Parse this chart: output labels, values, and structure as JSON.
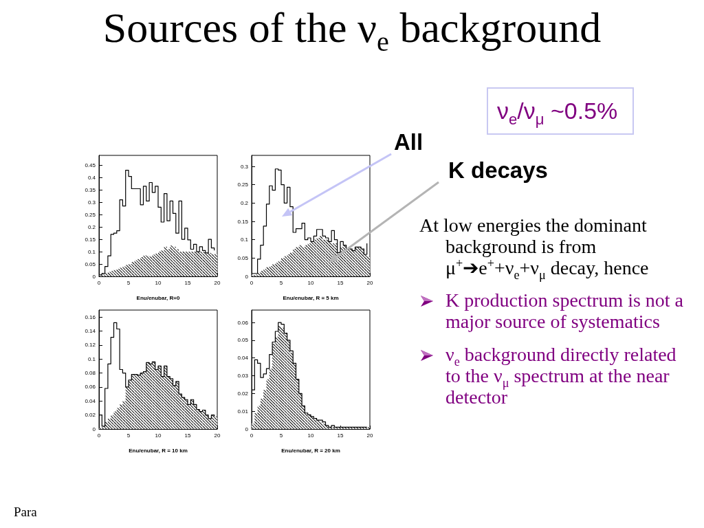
{
  "chart_data": [
    {
      "type": "histogram",
      "title": "Sources of the ν$_{e}$ background",
      "xlabel": "Enu/enubar, R=0",
      "annotations": [
        "ν$_{e}$/ν$_{μ}$ ~0.5%",
        "At low energies the dominant background is from μ$^{+}$➔e$^{+}$+ν$_{e}$+ν$_{μ}$ decay, hence",
        "K production spectrum is not a major source of systematics",
        "ν$_{e}$ background directly related to the ν$_{μ}$ spectrum at the near detector",
        "Para"
      ],
      "bins": [
        0,
        0.5,
        1,
        1.5,
        2,
        2.5,
        3,
        3.5,
        4,
        4.5,
        5,
        5.5,
        6,
        6.5,
        7,
        7.5,
        8,
        8.5,
        9,
        9.5,
        10,
        10.5,
        11,
        11.5,
        12,
        12.5,
        13,
        13.5,
        14,
        14.5,
        15,
        15.5,
        16,
        16.5,
        17,
        17.5,
        18,
        18.5,
        19,
        19.5,
        20
      ],
      "series": [
        {
          "type": "step",
          "color": "#000000",
          "x": [
            0,
            0.5,
            1,
            1.5,
            2,
            2.5,
            3,
            3.5,
            4,
            4.5,
            5,
            5.5,
            6,
            6.5,
            7,
            7.5,
            8,
            8.5,
            9,
            9.5,
            10,
            10.5,
            11,
            11.5,
            12,
            12.5,
            13,
            13.5,
            14,
            14.5,
            15,
            15.5,
            16,
            16.5,
            17,
            17.5,
            18,
            18.5,
            19,
            19.5
          ],
          "values": [
            0.006,
            0.012,
            0.04,
            0.083,
            0.17,
            0.175,
            0.185,
            0.31,
            0.285,
            0.43,
            0.405,
            0.355,
            0.355,
            0.355,
            0.29,
            0.365,
            0.305,
            0.38,
            0.34,
            0.365,
            0.28,
            0.22,
            0.335,
            0.225,
            0.305,
            0.255,
            0.175,
            0.305,
            0.15,
            0.195,
            0.148,
            0.11,
            0.13,
            0.1,
            0.12,
            0.105,
            0.095,
            0.15,
            0.115,
            0.105
          ]
        },
        {
          "color": "#000000",
          "values": [
            0.006,
            0.008,
            0.013,
            0.018,
            0.022,
            0.026,
            0.03,
            0.035,
            0.04,
            0.046,
            0.05,
            0.058,
            0.065,
            0.07,
            0.078,
            0.085,
            0.083,
            0.08,
            0.088,
            0.092,
            0.1,
            0.105,
            0.12,
            0.11,
            0.125,
            0.12,
            0.11,
            0.1,
            0.1,
            0.1,
            0.1,
            0.1,
            0.1,
            0.1,
            0.1,
            0.1,
            0.095,
            0.095,
            0.09,
            0.09
          ]
        }
      ],
      "xlim": [
        0,
        20
      ],
      "xticks": [
        0,
        5,
        10,
        15,
        20
      ],
      "ylim": [
        0,
        0.49
      ],
      "yticks": [
        0,
        0.05,
        0.1,
        0.15,
        0.2,
        0.25,
        0.3,
        0.35,
        0.4,
        0.45
      ]
    },
    {
      "type": "histogram",
      "xlabel": "Enu/enubar, R = 5 km",
      "annotations": [
        "All",
        "K decays"
      ],
      "bins": [
        0,
        0.5,
        1,
        1.5,
        2,
        2.5,
        3,
        3.5,
        4,
        4.5,
        5,
        5.5,
        6,
        6.5,
        7,
        7.5,
        8,
        8.5,
        9,
        9.5,
        10,
        10.5,
        11,
        11.5,
        12,
        12.5,
        13,
        13.5,
        14,
        14.5,
        15,
        15.5,
        16,
        16.5,
        17,
        17.5,
        18,
        18.5,
        19,
        19.5,
        20
      ],
      "series": [
        {
          "type": "step",
          "color": "#000000",
          "x": [
            0,
            0.5,
            1,
            1.5,
            2,
            2.5,
            3,
            3.5,
            4,
            4.5,
            5,
            5.5,
            6,
            6.5,
            7,
            7.5,
            8,
            8.5,
            9,
            9.5,
            10,
            10.5,
            11,
            11.5,
            12,
            12.5,
            13,
            13.5,
            14,
            14.5,
            15,
            15.5,
            16,
            16.5,
            17,
            17.5,
            18,
            18.5,
            19,
            19.5
          ],
          "values": [
            0.008,
            0.008,
            0.047,
            0.085,
            0.137,
            0.197,
            0.247,
            0.235,
            0.293,
            0.29,
            0.25,
            0.2,
            0.243,
            0.19,
            0.12,
            0.13,
            0.13,
            0.145,
            0.1,
            0.105,
            0.095,
            0.11,
            0.128,
            0.128,
            0.11,
            0.105,
            0.095,
            0.125,
            0.1,
            0.065,
            0.095,
            0.085,
            0.075,
            0.075,
            0.07,
            0.08,
            0.08,
            0.075,
            0.06,
            0.09
          ]
        },
        {
          "color": "#000000",
          "values": [
            0.004,
            0.005,
            0.01,
            0.015,
            0.02,
            0.025,
            0.028,
            0.033,
            0.037,
            0.042,
            0.05,
            0.055,
            0.06,
            0.065,
            0.075,
            0.08,
            0.085,
            0.08,
            0.085,
            0.09,
            0.095,
            0.1,
            0.105,
            0.11,
            0.1,
            0.1,
            0.095,
            0.09,
            0.09,
            0.065,
            0.08,
            0.085,
            0.075,
            0.075,
            0.07,
            0.08,
            0.08,
            0.075,
            0.06,
            0.055
          ]
        }
      ],
      "xlim": [
        0,
        20
      ],
      "xticks": [
        0,
        5,
        10,
        15,
        20
      ],
      "ylim": [
        0,
        0.33
      ],
      "yticks": [
        0,
        0.05,
        0.1,
        0.15,
        0.2,
        0.25,
        0.3
      ]
    },
    {
      "type": "histogram",
      "xlabel": "Enu/enubar, R = 10 km",
      "bins": [
        0,
        0.5,
        1,
        1.5,
        2,
        2.5,
        3,
        3.5,
        4,
        4.5,
        5,
        5.5,
        6,
        6.5,
        7,
        7.5,
        8,
        8.5,
        9,
        9.5,
        10,
        10.5,
        11,
        11.5,
        12,
        12.5,
        13,
        13.5,
        14,
        14.5,
        15,
        15.5,
        16,
        16.5,
        17,
        17.5,
        18,
        18.5,
        19,
        19.5,
        20
      ],
      "series": [
        {
          "type": "step",
          "color": "#000000",
          "x": [
            0,
            0.5,
            1,
            1.5,
            2,
            2.5,
            3,
            3.5,
            4,
            4.5,
            5,
            5.5,
            6,
            6.5,
            7,
            7.5,
            8,
            8.5,
            9,
            9.5,
            10,
            10.5,
            11,
            11.5,
            12,
            12.5,
            13,
            13.5,
            14,
            14.5,
            15,
            15.5,
            16,
            16.5,
            17,
            17.5,
            18,
            18.5,
            19,
            19.5
          ],
          "values": [
            0.02,
            0.004,
            0.058,
            0.093,
            0.131,
            0.152,
            0.143,
            0.085,
            0.08,
            0.06,
            0.07,
            0.078,
            0.078,
            0.077,
            0.08,
            0.082,
            0.095,
            0.093,
            0.096,
            0.085,
            0.09,
            0.075,
            0.09,
            0.075,
            0.072,
            0.062,
            0.068,
            0.05,
            0.045,
            0.042,
            0.035,
            0.042,
            0.035,
            0.028,
            0.025,
            0.027,
            0.02,
            0.015,
            0.02,
            0.018
          ]
        },
        {
          "color": "#000000",
          "values": [
            0.002,
            0.004,
            0.01,
            0.015,
            0.02,
            0.025,
            0.03,
            0.035,
            0.04,
            0.06,
            0.07,
            0.078,
            0.078,
            0.077,
            0.08,
            0.082,
            0.095,
            0.093,
            0.096,
            0.085,
            0.09,
            0.075,
            0.09,
            0.075,
            0.072,
            0.062,
            0.068,
            0.05,
            0.045,
            0.042,
            0.035,
            0.042,
            0.035,
            0.028,
            0.025,
            0.027,
            0.02,
            0.015,
            0.02,
            0.018
          ]
        }
      ],
      "xlim": [
        0,
        20
      ],
      "xticks": [
        0,
        5,
        10,
        15,
        20
      ],
      "ylim": [
        0,
        0.17
      ],
      "yticks": [
        0,
        0.02,
        0.04,
        0.06,
        0.08,
        0.1,
        0.12,
        0.14,
        0.16
      ]
    },
    {
      "type": "histogram",
      "xlabel": "Enu/enubar, R = 20 km",
      "bins": [
        0,
        0.5,
        1,
        1.5,
        2,
        2.5,
        3,
        3.5,
        4,
        4.5,
        5,
        5.5,
        6,
        6.5,
        7,
        7.5,
        8,
        8.5,
        9,
        9.5,
        10,
        10.5,
        11,
        11.5,
        12,
        12.5,
        13,
        13.5,
        14,
        14.5,
        15,
        15.5,
        16,
        16.5,
        17,
        17.5,
        18,
        18.5,
        19,
        19.5,
        20
      ],
      "series": [
        {
          "type": "step",
          "color": "#000000",
          "x": [
            0,
            0.5,
            1,
            1.5,
            2,
            2.5,
            3,
            3.5,
            4,
            4.5,
            5,
            5.5,
            6,
            6.5,
            7,
            7.5,
            8,
            8.5,
            9,
            9.5,
            10,
            10.5,
            11,
            11.5,
            12,
            12.5,
            13,
            13.5,
            14,
            14.5,
            15,
            15.5,
            16,
            16.5,
            17,
            17.5,
            18,
            18.5,
            19,
            19.5
          ],
          "values": [
            0.022,
            0.039,
            0.037,
            0.029,
            0.031,
            0.034,
            0.042,
            0.049,
            0.055,
            0.06,
            0.059,
            0.054,
            0.05,
            0.044,
            0.037,
            0.028,
            0.02,
            0.013,
            0.009,
            0.008,
            0.007,
            0.006,
            0.005,
            0.005,
            0.004,
            0.002,
            0.001,
            0.002,
            0.001,
            0.001,
            0.001,
            0.001,
            0.001,
            0.001,
            0.001,
            0.001,
            0.001,
            0.001,
            0.001,
            0.001
          ]
        },
        {
          "color": "#000000",
          "values": [
            0.003,
            0.009,
            0.013,
            0.017,
            0.022,
            0.028,
            0.034,
            0.048,
            0.052,
            0.058,
            0.057,
            0.054,
            0.05,
            0.043,
            0.037,
            0.028,
            0.02,
            0.013,
            0.009,
            0.008,
            0.007,
            0.006,
            0.005,
            0.004,
            0.003,
            0.002,
            0.001,
            0.001,
            0.001,
            0.001,
            0.001,
            0.001,
            0.001,
            0.001,
            0.001,
            0.001,
            0.001,
            0.001,
            0.001,
            0.001
          ]
        }
      ],
      "xlim": [
        0,
        20
      ],
      "xticks": [
        0,
        5,
        10,
        15,
        20
      ],
      "ylim": [
        0,
        0.067
      ],
      "yticks": [
        0,
        0.01,
        0.02,
        0.03,
        0.04,
        0.05,
        0.06
      ]
    }
  ]
}
